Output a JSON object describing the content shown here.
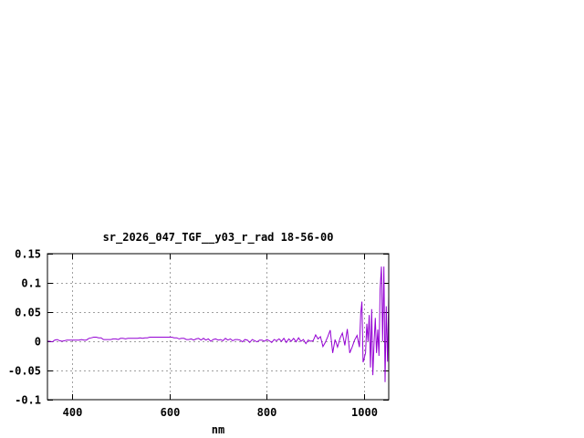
{
  "chart_data": {
    "type": "line",
    "title": "sr_2026_047_TGF__y03_r_rad 18-56-00",
    "xlabel": "nm",
    "ylabel": "",
    "xlim": [
      350,
      1050
    ],
    "ylim": [
      -0.1,
      0.15
    ],
    "xticks": [
      400,
      600,
      800,
      1000
    ],
    "xtick_labels": [
      "400",
      "600",
      "800",
      "1000"
    ],
    "yticks": [
      -0.1,
      -0.05,
      0,
      0.05,
      0.1,
      0.15
    ],
    "ytick_labels": [
      "-0.1",
      "-0.05",
      "0",
      "0.05",
      "0.1",
      "0.15"
    ],
    "grid": true,
    "legend": "none",
    "series": [
      {
        "color": "#9400d3",
        "x": [
          350,
          355,
          360,
          365,
          370,
          375,
          380,
          385,
          390,
          395,
          400,
          405,
          410,
          415,
          420,
          425,
          430,
          435,
          440,
          445,
          450,
          455,
          460,
          465,
          470,
          475,
          480,
          485,
          490,
          495,
          500,
          505,
          510,
          515,
          520,
          525,
          530,
          535,
          540,
          545,
          550,
          555,
          560,
          565,
          570,
          575,
          580,
          585,
          590,
          595,
          600,
          605,
          610,
          615,
          620,
          625,
          630,
          635,
          640,
          645,
          650,
          655,
          660,
          665,
          670,
          675,
          680,
          685,
          690,
          695,
          700,
          705,
          710,
          715,
          720,
          725,
          730,
          735,
          740,
          745,
          750,
          755,
          760,
          765,
          770,
          775,
          780,
          785,
          790,
          795,
          800,
          805,
          810,
          815,
          820,
          825,
          830,
          835,
          840,
          845,
          850,
          855,
          860,
          865,
          870,
          875,
          880,
          885,
          890,
          895,
          900,
          905,
          910,
          915,
          920,
          925,
          930,
          935,
          940,
          945,
          950,
          955,
          960,
          965,
          970,
          975,
          980,
          985,
          990,
          992.5,
          995,
          997.5,
          1000,
          1002.5,
          1005,
          1007.5,
          1010,
          1012.5,
          1015,
          1017.5,
          1020,
          1022.5,
          1025,
          1027.5,
          1030,
          1032.5,
          1035,
          1037.5,
          1040,
          1042.5,
          1045,
          1047.5,
          1050
        ],
        "y": [
          0,
          0,
          -0.001,
          0.002,
          0.003,
          0.001,
          0,
          0.001,
          0.002,
          0.002,
          0.002,
          0.002,
          0.002,
          0.002,
          0.003,
          0.002,
          0.002,
          0.005,
          0.006,
          0.007,
          0.007,
          0.006,
          0.006,
          0.003,
          0.003,
          0.003,
          0.003,
          0.004,
          0.004,
          0.003,
          0.005,
          0.005,
          0.004,
          0.005,
          0.005,
          0.005,
          0.005,
          0.005,
          0.006,
          0.005,
          0.006,
          0.006,
          0.007,
          0.007,
          0.007,
          0.007,
          0.007,
          0.007,
          0.007,
          0.007,
          0.007,
          0.007,
          0.006,
          0.006,
          0.004,
          0.005,
          0.005,
          0.003,
          0.003,
          0.004,
          0.002,
          0.004,
          0.005,
          0.002,
          0.005,
          0.002,
          0.004,
          0,
          0.003,
          0.004,
          0.002,
          0.003,
          0.001,
          0.005,
          0.002,
          0.004,
          0.001,
          0.003,
          0.003,
          0.002,
          -0.001,
          0.003,
          0.002,
          -0.002,
          0.003,
          0.001,
          -0.001,
          0.002,
          0.002,
          0,
          0.003,
          0.001,
          -0.002,
          0.003,
          0.001,
          0.004,
          0,
          0.005,
          -0.002,
          0.004,
          0,
          0.005,
          -0.001,
          0.006,
          0,
          0.003,
          -0.004,
          0.002,
          0,
          0.001,
          0.011,
          0.004,
          0.008,
          -0.009,
          -0.002,
          0.008,
          0.019,
          -0.02,
          0.003,
          -0.01,
          0.005,
          0.014,
          -0.007,
          0.021,
          -0.02,
          -0.01,
          0.002,
          0.01,
          -0.01,
          0.047,
          0.068,
          -0.036,
          -0.028,
          -0.02,
          0.03,
          0,
          0.045,
          -0.045,
          0.055,
          -0.058,
          0,
          0.04,
          -0.02,
          0.02,
          -0.025,
          0.09,
          0.128,
          0,
          0.128,
          -0.07,
          0.06,
          -0.035,
          0.077
        ]
      }
    ]
  }
}
